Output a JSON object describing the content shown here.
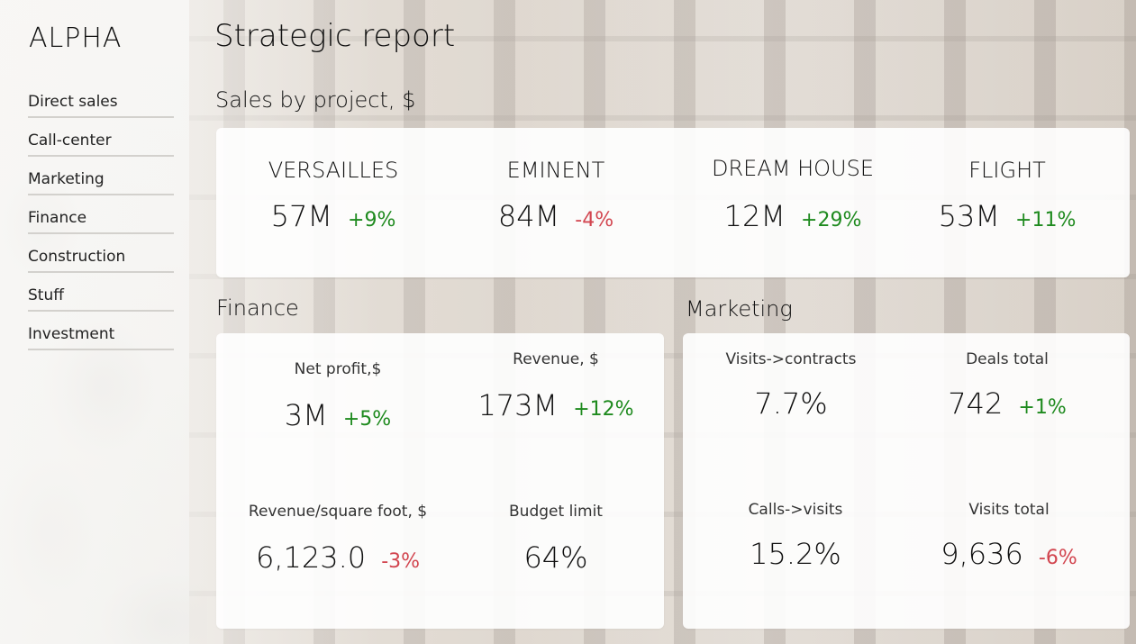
{
  "brand": "ALPHA",
  "sidebar": {
    "items": [
      {
        "label": "Direct sales"
      },
      {
        "label": "Call-center"
      },
      {
        "label": "Marketing"
      },
      {
        "label": "Finance"
      },
      {
        "label": "Construction"
      },
      {
        "label": "Stuff"
      },
      {
        "label": "Investment"
      }
    ]
  },
  "page_title": "Strategic report",
  "sales": {
    "title": "Sales by project, $",
    "projects": [
      {
        "name": "VERSAILLES",
        "value": "57M",
        "delta": "+9%",
        "trend": "up"
      },
      {
        "name": "EMINENT",
        "value": "84M",
        "delta": "-4%",
        "trend": "down"
      },
      {
        "name": "DREAM HOUSE",
        "value": "12M",
        "delta": "+29%",
        "trend": "up"
      },
      {
        "name": "FLIGHT",
        "value": "53M",
        "delta": "+11%",
        "trend": "up"
      }
    ]
  },
  "finance": {
    "title": "Finance",
    "metrics": [
      {
        "label": "Net profit,$",
        "value": "3M",
        "delta": "+5%",
        "trend": "up"
      },
      {
        "label": "Revenue, $",
        "value": "173M",
        "delta": "+12%",
        "trend": "up"
      },
      {
        "label": "Revenue/square foot, $",
        "value": "6,123.0",
        "delta": "-3%",
        "trend": "down"
      },
      {
        "label": "Budget limit",
        "value": "64%",
        "delta": "",
        "trend": ""
      }
    ]
  },
  "marketing": {
    "title": "Marketing",
    "metrics": [
      {
        "label": "Visits->contracts",
        "value": "7.7%",
        "delta": "",
        "trend": ""
      },
      {
        "label": "Deals total",
        "value": "742",
        "delta": "+1%",
        "trend": "up"
      },
      {
        "label": "Calls->visits",
        "value": "15.2%",
        "delta": "",
        "trend": ""
      },
      {
        "label": "Visits total",
        "value": "9,636",
        "delta": "-6%",
        "trend": "down"
      }
    ]
  },
  "colors": {
    "up": "#1e8a1e",
    "down": "#d2454f"
  }
}
